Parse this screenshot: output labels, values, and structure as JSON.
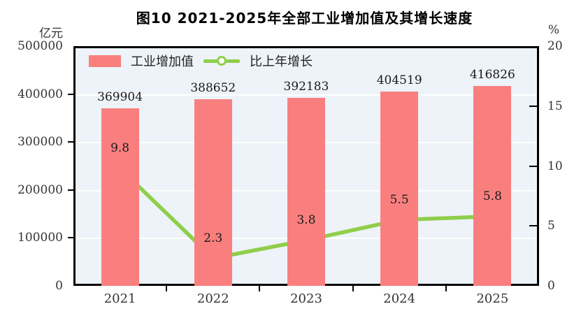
{
  "title": "图10  2021-2025年全部工业增加值及其增长速度",
  "left_axis_unit": "亿元",
  "right_axis_unit": "%",
  "legend": {
    "bar_label": "工业增加值",
    "line_label": "比上年增长"
  },
  "colors": {
    "bar": "#f97f7f",
    "line": "#8fce4a",
    "marker_fill": "#ffffff",
    "plot_bg": "#edf3f8",
    "grid": "#ffffff",
    "axis": "#000000",
    "text": "#333333"
  },
  "chart_data": {
    "type": "bar",
    "title": "图10  2021-2025年全部工业增加值及其增长速度",
    "categories": [
      "2021",
      "2022",
      "2023",
      "2024",
      "2025"
    ],
    "series": [
      {
        "name": "工业增加值",
        "type": "bar",
        "axis": "left",
        "unit": "亿元",
        "values": [
          369904,
          388652,
          392183,
          404519,
          416826
        ]
      },
      {
        "name": "比上年增长",
        "type": "line",
        "axis": "right",
        "unit": "%",
        "values": [
          9.8,
          2.3,
          3.8,
          5.5,
          5.8
        ]
      }
    ],
    "left_axis": {
      "label": "亿元",
      "min": 0,
      "max": 500000,
      "ticks": [
        0,
        100000,
        200000,
        300000,
        400000,
        500000
      ]
    },
    "right_axis": {
      "label": "%",
      "min": 0,
      "max": 20,
      "ticks": [
        0,
        5,
        10,
        15,
        20
      ]
    },
    "grid": "horizontal-white",
    "legend_position": "top-left-inside"
  }
}
